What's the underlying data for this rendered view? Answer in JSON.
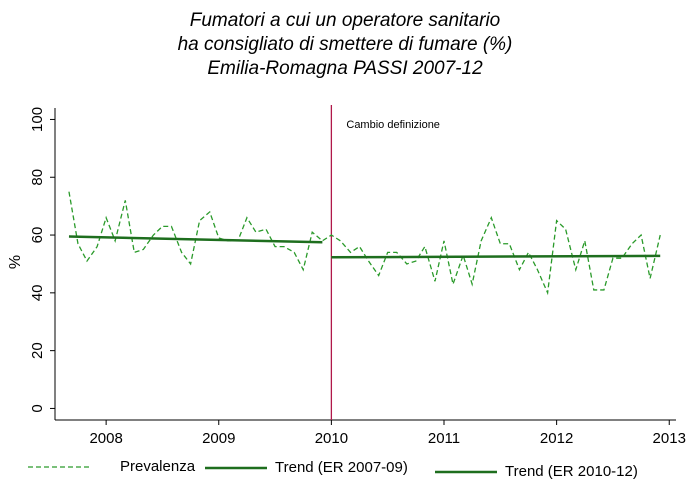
{
  "chart_data": {
    "type": "line",
    "title": [
      "Fumatori a cui un operatore sanitario",
      "ha consigliato di smettere di fumare (%)",
      "Emilia-Romagna PASSI 2007-12"
    ],
    "y_label": "%",
    "xlim": [
      2007.546,
      2013.06
    ],
    "xticks": [
      2008,
      2009,
      2010,
      2011,
      2012,
      2013
    ],
    "ylim": [
      -4,
      105
    ],
    "yticks": [
      0,
      20,
      40,
      60,
      80,
      100
    ],
    "grid": false,
    "legend": "bottom",
    "annotation": {
      "x": 2010,
      "text": "Cambio definizione",
      "color": "#b0184a"
    },
    "series": [
      {
        "name": "Prevalenza",
        "color": "#2a9a2a",
        "dash": true,
        "x": [
          2007.67,
          2007.75,
          2007.83,
          2007.92,
          2008.0,
          2008.08,
          2008.17,
          2008.25,
          2008.33,
          2008.42,
          2008.5,
          2008.58,
          2008.67,
          2008.75,
          2008.83,
          2008.92,
          2009.0,
          2009.08,
          2009.17,
          2009.25,
          2009.33,
          2009.42,
          2009.5,
          2009.58,
          2009.67,
          2009.75,
          2009.83,
          2009.92,
          2010.0,
          2010.08,
          2010.17,
          2010.25,
          2010.33,
          2010.42,
          2010.5,
          2010.58,
          2010.67,
          2010.75,
          2010.83,
          2010.92,
          2011.0,
          2011.08,
          2011.17,
          2011.25,
          2011.33,
          2011.42,
          2011.5,
          2011.58,
          2011.67,
          2011.75,
          2011.83,
          2011.92,
          2012.0,
          2012.08,
          2012.17,
          2012.25,
          2012.33,
          2012.42,
          2012.5,
          2012.58,
          2012.67,
          2012.75,
          2012.83,
          2012.92
        ],
        "values": [
          75,
          57,
          51,
          56,
          66,
          58,
          72,
          54,
          55,
          60,
          63,
          63,
          54,
          50,
          65,
          68,
          59,
          58,
          58,
          66,
          61,
          62,
          56,
          56,
          54,
          48,
          61,
          58,
          60,
          58,
          54,
          56,
          51,
          46,
          54,
          54,
          50,
          51,
          56,
          44,
          58,
          43,
          53,
          43,
          58,
          66,
          57,
          57,
          48,
          54,
          48,
          40,
          65,
          62,
          48,
          58,
          41,
          41,
          52,
          52,
          57,
          60,
          45,
          60
        ]
      },
      {
        "name": "Trend (ER 2007-09)",
        "color": "#1e6e1e",
        "dash": false,
        "x": [
          2007.67,
          2009.92
        ],
        "values": [
          59.5,
          57.5
        ]
      },
      {
        "name": "Trend (ER 2010-12)",
        "color": "#1e6e1e",
        "dash": false,
        "x": [
          2010.0,
          2012.92
        ],
        "values": [
          52.3,
          52.8
        ]
      }
    ]
  }
}
